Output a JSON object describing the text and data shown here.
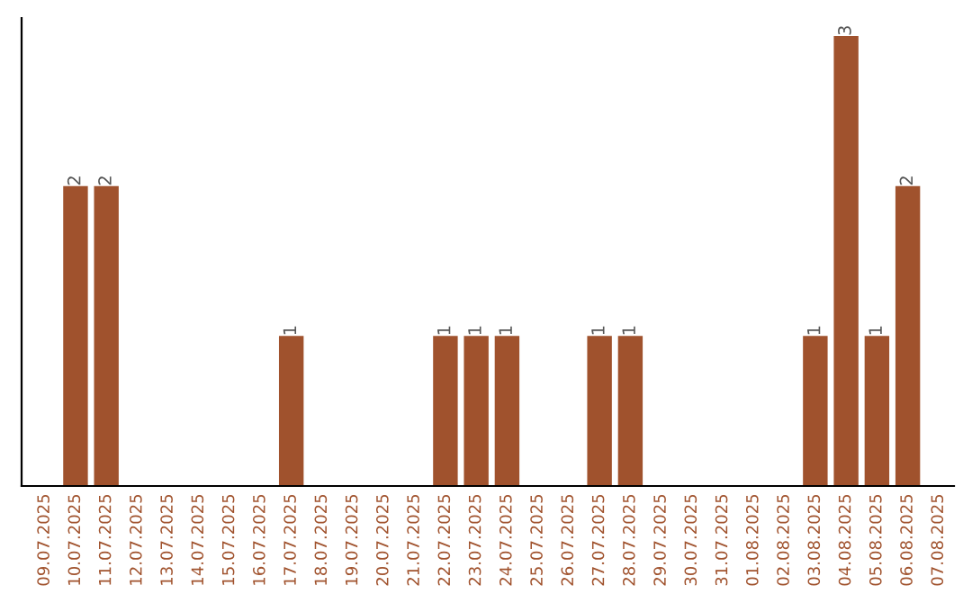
{
  "chart_data": {
    "type": "bar",
    "categories": [
      "09.07.2025",
      "10.07.2025",
      "11.07.2025",
      "12.07.2025",
      "13.07.2025",
      "14.07.2025",
      "15.07.2025",
      "16.07.2025",
      "17.07.2025",
      "18.07.2025",
      "19.07.2025",
      "20.07.2025",
      "21.07.2025",
      "22.07.2025",
      "23.07.2025",
      "24.07.2025",
      "25.07.2025",
      "26.07.2025",
      "27.07.2025",
      "28.07.2025",
      "29.07.2025",
      "30.07.2025",
      "31.07.2025",
      "01.08.2025",
      "02.08.2025",
      "03.08.2025",
      "04.08.2025",
      "05.08.2025",
      "06.08.2025",
      "07.08.2025"
    ],
    "values": [
      0,
      2,
      2,
      0,
      0,
      0,
      0,
      0,
      1,
      0,
      0,
      0,
      0,
      1,
      1,
      1,
      0,
      0,
      1,
      1,
      0,
      0,
      0,
      0,
      0,
      1,
      3,
      1,
      2,
      0
    ],
    "value_labels": [
      null,
      "2",
      "2",
      null,
      null,
      null,
      null,
      null,
      "1",
      null,
      null,
      null,
      null,
      "1",
      "1",
      "1",
      null,
      null,
      "1",
      "1",
      null,
      null,
      null,
      null,
      null,
      "1",
      "3",
      "1",
      "2",
      null
    ],
    "color": "#a0522d",
    "tick_labels": "x",
    "grid": false
  }
}
